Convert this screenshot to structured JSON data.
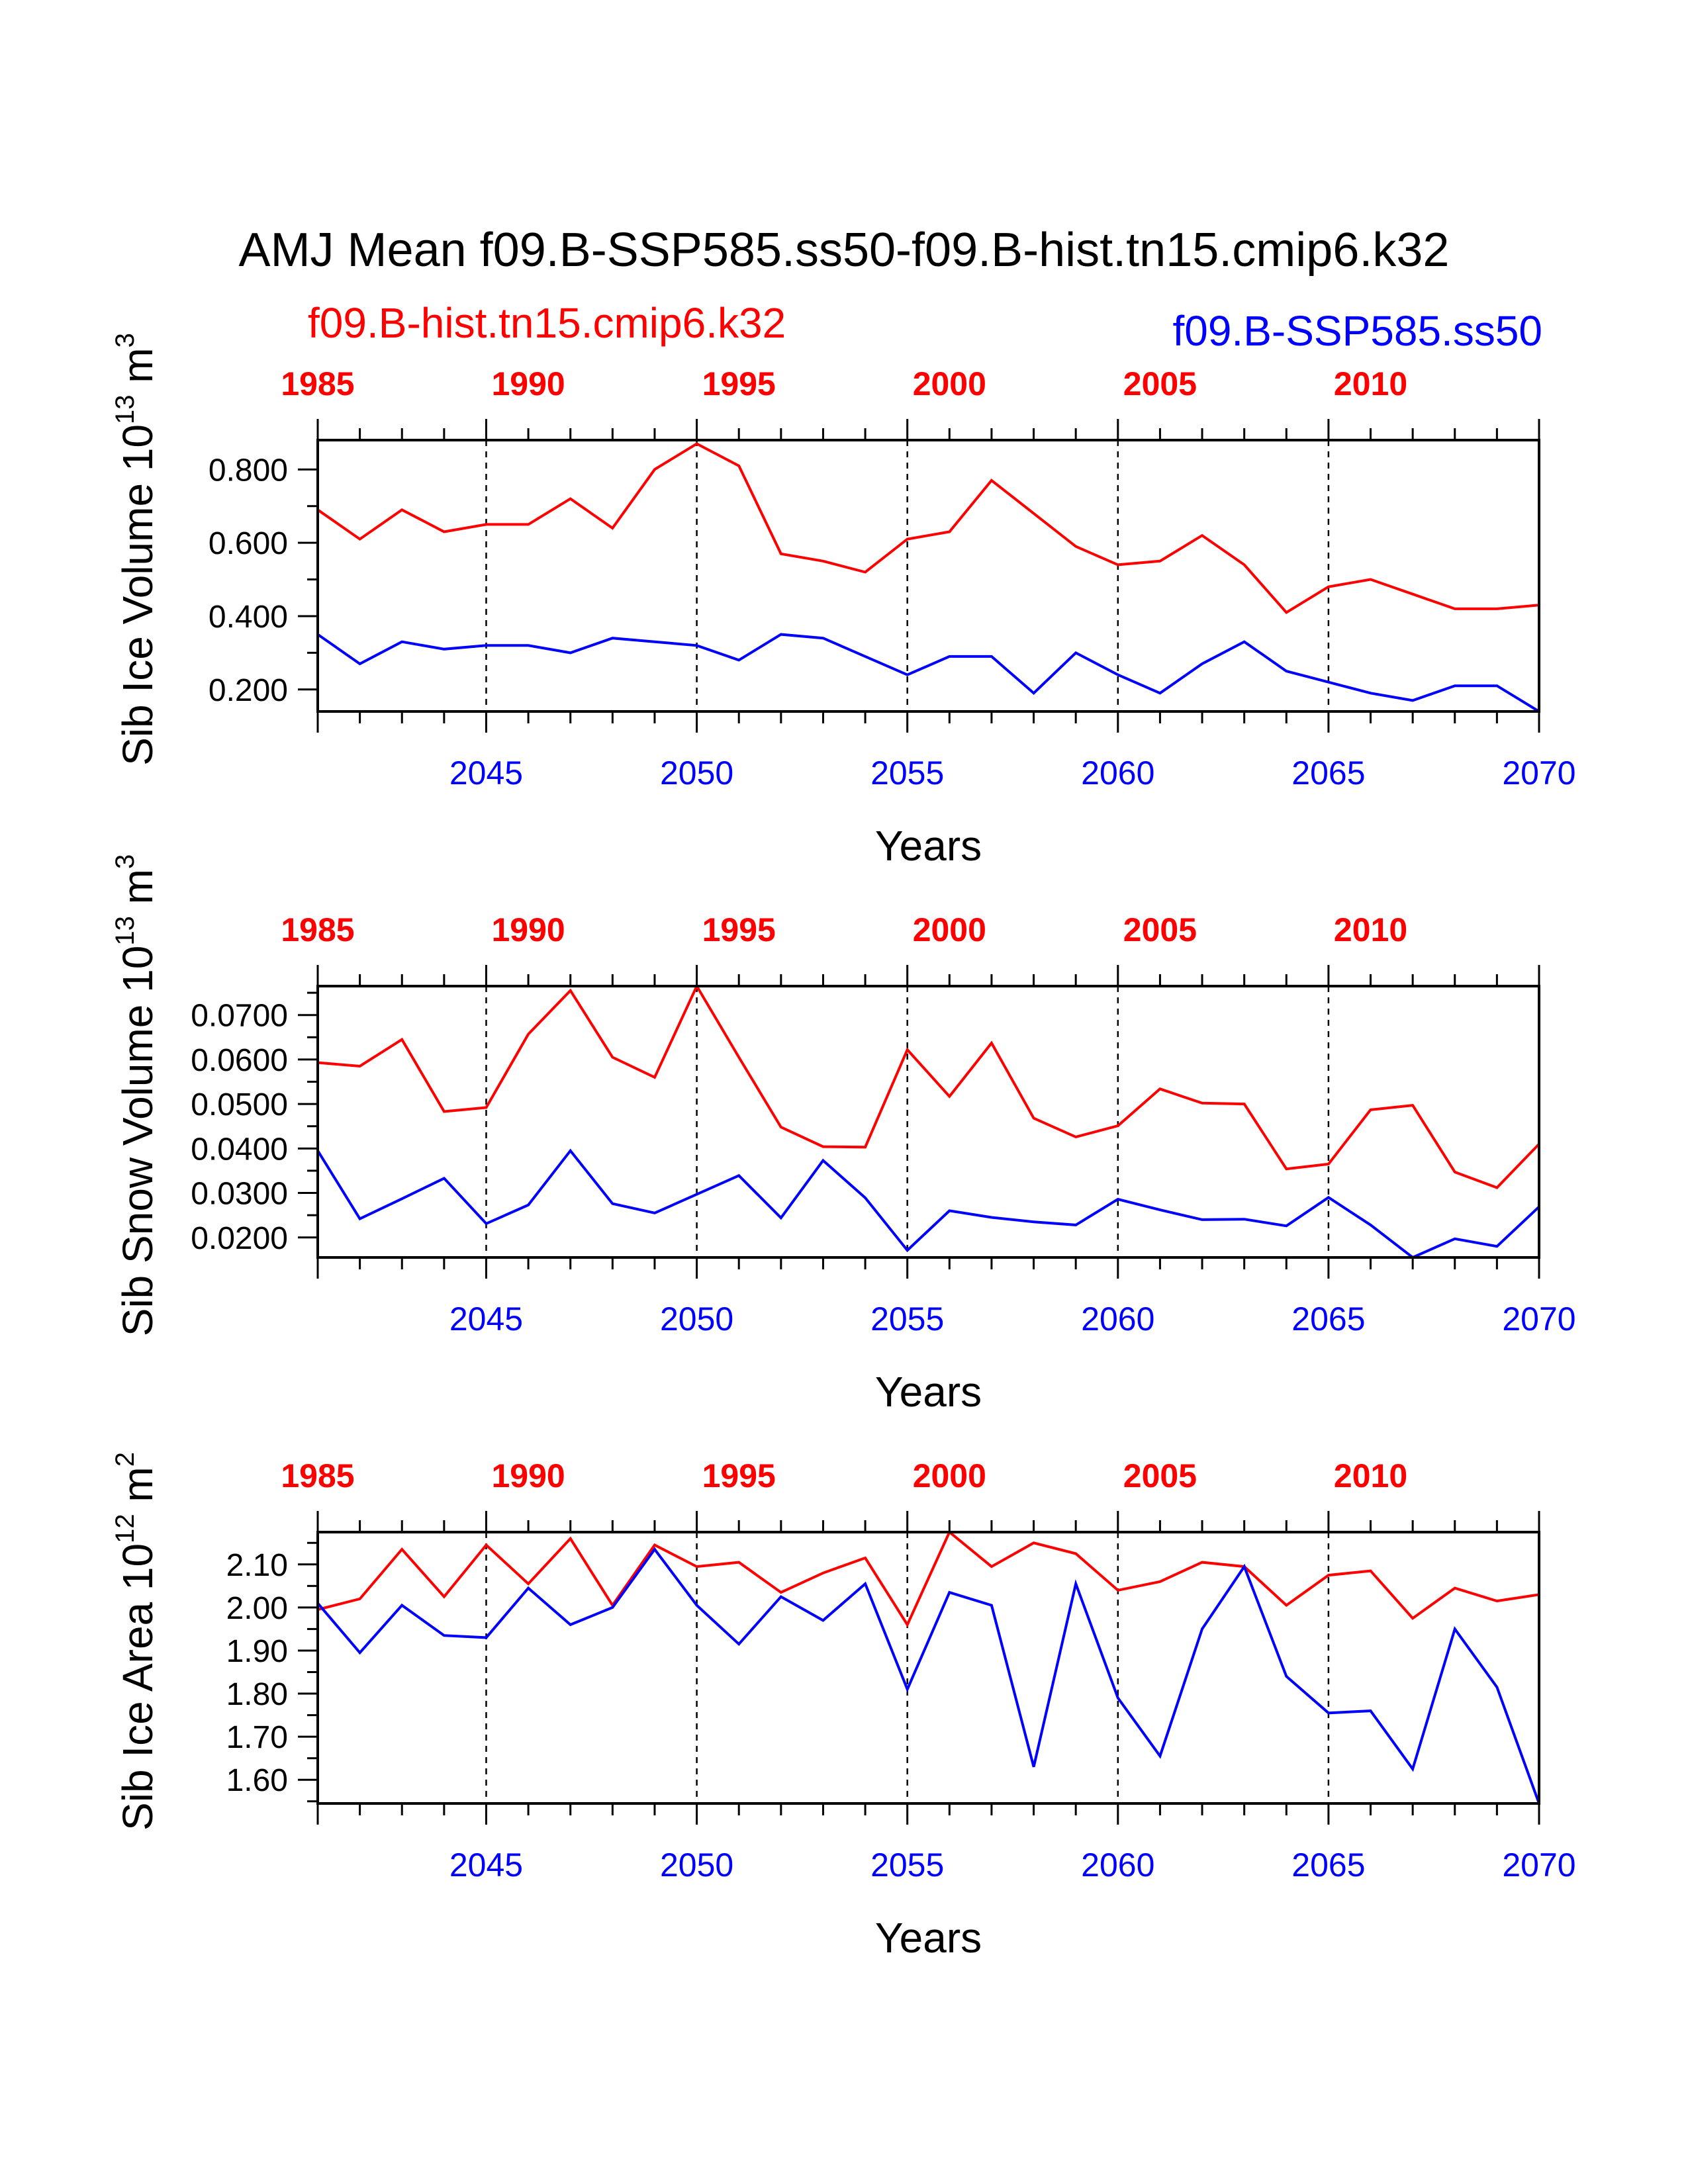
{
  "header": {
    "title": "AMJ Mean f09.B-SSP585.ss50-f09.B-hist.tn15.cmip6.k32",
    "left_label": "f09.B-hist.tn15.cmip6.k32",
    "right_label": "f09.B-SSP585.ss50"
  },
  "colors": {
    "hist": "#ff0000",
    "ssp": "#0000ff",
    "axis": "#000000"
  },
  "chart_data": [
    {
      "type": "line",
      "ylabel": "Sib Ice Volume",
      "yunit_base": "10",
      "yunit_exp": "13",
      "yunit_name": "m",
      "yunit_name_exp": "3",
      "xlabel": "Years",
      "ylim": [
        0.14,
        0.88
      ],
      "yticks": [
        0.2,
        0.4,
        0.6,
        0.8
      ],
      "ytick_labels": [
        "0.200",
        "0.400",
        "0.600",
        "0.800"
      ],
      "top_axis": {
        "ticks": [
          1985,
          1990,
          1995,
          2000,
          2005,
          2010
        ],
        "labels": [
          "1985",
          "1990",
          "1995",
          "2000",
          "2005",
          "2010"
        ]
      },
      "bottom_axis": {
        "xlim": [
          2041,
          2070
        ],
        "ticks": [
          2045,
          2050,
          2055,
          2060,
          2065,
          2070
        ],
        "labels": [
          "2045",
          "2050",
          "2055",
          "2060",
          "2065",
          "2070"
        ]
      },
      "x": [
        2041,
        2042,
        2043,
        2044,
        2045,
        2046,
        2047,
        2048,
        2049,
        2050,
        2051,
        2052,
        2053,
        2054,
        2055,
        2056,
        2057,
        2058,
        2059,
        2060,
        2061,
        2062,
        2063,
        2064,
        2065,
        2066,
        2067,
        2068,
        2069,
        2070
      ],
      "series": [
        {
          "name": "f09.B-hist.tn15.cmip6.k32",
          "values": [
            0.69,
            0.61,
            0.69,
            0.63,
            0.65,
            0.65,
            0.72,
            0.64,
            0.8,
            0.87,
            0.81,
            0.57,
            0.55,
            0.52,
            0.61,
            0.63,
            0.77,
            0.68,
            0.59,
            0.54,
            0.55,
            0.62,
            0.54,
            0.41,
            0.48,
            0.5,
            0.46,
            0.42,
            0.42,
            0.43
          ]
        },
        {
          "name": "f09.B-SSP585.ss50",
          "values": [
            0.35,
            0.27,
            0.33,
            0.31,
            0.32,
            0.32,
            0.3,
            0.34,
            0.33,
            0.32,
            0.28,
            0.35,
            0.34,
            0.29,
            0.24,
            0.29,
            0.29,
            0.19,
            0.3,
            0.24,
            0.19,
            0.27,
            0.33,
            0.25,
            0.22,
            0.19,
            0.17,
            0.21,
            0.21,
            0.14
          ]
        }
      ]
    },
    {
      "type": "line",
      "ylabel": "Sib Snow Volume",
      "yunit_base": "10",
      "yunit_exp": "13",
      "yunit_name": "m",
      "yunit_name_exp": "3",
      "xlabel": "Years",
      "ylim": [
        0.0155,
        0.0765
      ],
      "yticks": [
        0.02,
        0.03,
        0.04,
        0.05,
        0.06,
        0.07
      ],
      "ytick_labels": [
        "0.0200",
        "0.0300",
        "0.0400",
        "0.0500",
        "0.0600",
        "0.0700"
      ],
      "top_axis": {
        "ticks": [
          1985,
          1990,
          1995,
          2000,
          2005,
          2010
        ],
        "labels": [
          "1985",
          "1990",
          "1995",
          "2000",
          "2005",
          "2010"
        ]
      },
      "bottom_axis": {
        "xlim": [
          2041,
          2070
        ],
        "ticks": [
          2045,
          2050,
          2055,
          2060,
          2065,
          2070
        ],
        "labels": [
          "2045",
          "2050",
          "2055",
          "2060",
          "2065",
          "2070"
        ]
      },
      "x": [
        2041,
        2042,
        2043,
        2044,
        2045,
        2046,
        2047,
        2048,
        2049,
        2050,
        2051,
        2052,
        2053,
        2054,
        2055,
        2056,
        2057,
        2058,
        2059,
        2060,
        2061,
        2062,
        2063,
        2064,
        2065,
        2066,
        2067,
        2068,
        2069,
        2070
      ],
      "series": [
        {
          "name": "f09.B-hist.tn15.cmip6.k32",
          "values": [
            0.0593,
            0.0585,
            0.0645,
            0.0483,
            0.0492,
            0.0657,
            0.0755,
            0.0605,
            0.056,
            0.0765,
            0.0605,
            0.0448,
            0.0404,
            0.0403,
            0.0622,
            0.0517,
            0.0637,
            0.0468,
            0.0426,
            0.0451,
            0.0534,
            0.0502,
            0.05,
            0.0354,
            0.0365,
            0.0487,
            0.0497,
            0.0347,
            0.0312,
            0.041
          ]
        },
        {
          "name": "f09.B-SSP585.ss50",
          "values": [
            0.0395,
            0.0242,
            0.0287,
            0.0333,
            0.0231,
            0.0273,
            0.0395,
            0.0276,
            0.0255,
            0.0297,
            0.0339,
            0.0244,
            0.0373,
            0.0289,
            0.0171,
            0.026,
            0.0245,
            0.0235,
            0.0228,
            0.0286,
            0.0262,
            0.024,
            0.0241,
            0.0226,
            0.029,
            0.0228,
            0.0155,
            0.0197,
            0.018,
            0.0269
          ]
        }
      ]
    },
    {
      "type": "line",
      "ylabel": "Sib Ice Area",
      "yunit_base": "10",
      "yunit_exp": "12",
      "yunit_name": "m",
      "yunit_name_exp": "2",
      "xlabel": "Years",
      "ylim": [
        1.545,
        2.175
      ],
      "yticks": [
        1.6,
        1.7,
        1.8,
        1.9,
        2.0,
        2.1
      ],
      "ytick_labels": [
        "1.60",
        "1.70",
        "1.80",
        "1.90",
        "2.00",
        "2.10"
      ],
      "top_axis": {
        "ticks": [
          1985,
          1990,
          1995,
          2000,
          2005,
          2010
        ],
        "labels": [
          "1985",
          "1990",
          "1995",
          "2000",
          "2005",
          "2010"
        ]
      },
      "bottom_axis": {
        "xlim": [
          2041,
          2070
        ],
        "ticks": [
          2045,
          2050,
          2055,
          2060,
          2065,
          2070
        ],
        "labels": [
          "2045",
          "2050",
          "2055",
          "2060",
          "2065",
          "2070"
        ]
      },
      "x": [
        2041,
        2042,
        2043,
        2044,
        2045,
        2046,
        2047,
        2048,
        2049,
        2050,
        2051,
        2052,
        2053,
        2054,
        2055,
        2056,
        2057,
        2058,
        2059,
        2060,
        2061,
        2062,
        2063,
        2064,
        2065,
        2066,
        2067,
        2068,
        2069,
        2070
      ],
      "series": [
        {
          "name": "f09.B-hist.tn15.cmip6.k32",
          "values": [
            1.995,
            2.02,
            2.135,
            2.025,
            2.145,
            2.055,
            2.16,
            2.005,
            2.145,
            2.095,
            2.105,
            2.035,
            2.08,
            2.115,
            1.96,
            2.175,
            2.095,
            2.15,
            2.125,
            2.04,
            2.06,
            2.105,
            2.095,
            2.005,
            2.075,
            2.085,
            1.975,
            2.045,
            2.015,
            2.03
          ]
        },
        {
          "name": "f09.B-SSP585.ss50",
          "values": [
            2.01,
            1.895,
            2.005,
            1.935,
            1.93,
            2.045,
            1.96,
            2.0,
            2.135,
            2.005,
            1.915,
            2.025,
            1.97,
            2.055,
            1.81,
            2.035,
            2.005,
            1.63,
            2.055,
            1.79,
            1.655,
            1.95,
            2.095,
            1.84,
            1.755,
            1.76,
            1.625,
            1.95,
            1.815,
            1.545
          ]
        }
      ]
    }
  ]
}
